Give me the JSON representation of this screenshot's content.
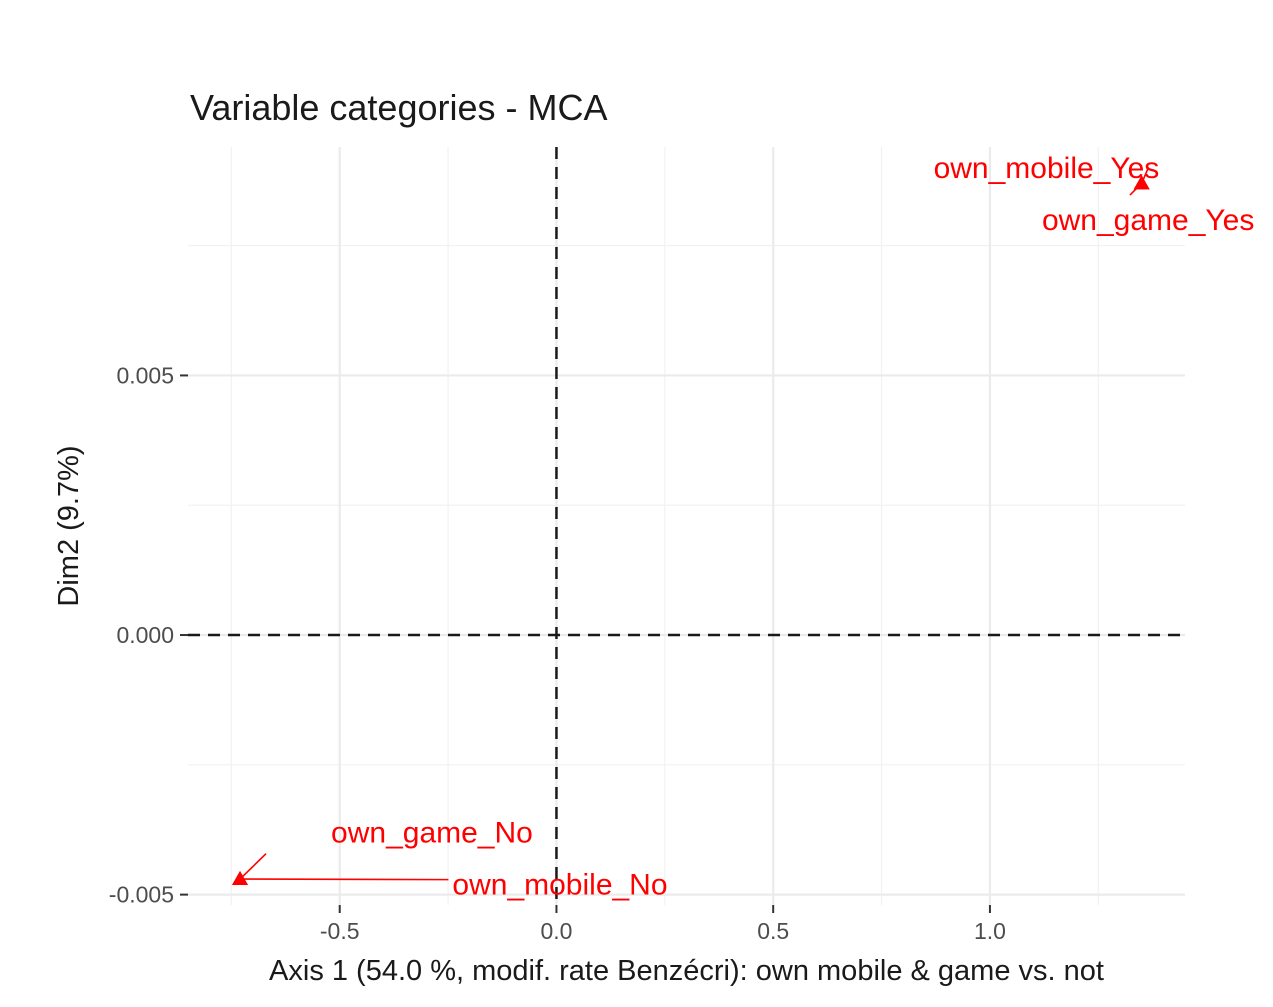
{
  "chart_data": {
    "type": "scatter",
    "title": "Variable categories - MCA",
    "xlabel": "Axis 1 (54.0 %, modif. rate Benzécri): own mobile & game vs. not",
    "ylabel": "Dim2 (9.7%)",
    "xlim": [
      -0.85,
      1.45
    ],
    "ylim": [
      -0.0052,
      0.0094
    ],
    "x_ticks": [
      -0.5,
      0.0,
      0.5,
      1.0
    ],
    "x_tick_labels": [
      "-0.5",
      "0.0",
      "0.5",
      "1.0"
    ],
    "y_ticks": [
      -0.005,
      0.0,
      0.005
    ],
    "y_tick_labels": [
      "-0.005",
      "0.000",
      "0.005"
    ],
    "grid": true,
    "reference_lines": {
      "x": 0,
      "y": 0,
      "style": "dashed"
    },
    "marker": "triangle",
    "color": "#ff0000",
    "points": [
      {
        "label": "own_mobile_Yes",
        "x": 1.35,
        "y": 0.0087
      },
      {
        "label": "own_game_Yes",
        "x": 1.35,
        "y": 0.0087
      },
      {
        "label": "own_game_No",
        "x": -0.73,
        "y": -0.0047
      },
      {
        "label": "own_mobile_No",
        "x": -0.73,
        "y": -0.0047
      }
    ],
    "label_positions": [
      {
        "label": "own_mobile_Yes",
        "x": 0.87,
        "y": 0.0088
      },
      {
        "label": "own_game_Yes",
        "x": 1.12,
        "y": 0.0078
      },
      {
        "label": "own_game_No",
        "x": -0.52,
        "y": -0.004
      },
      {
        "label": "own_mobile_No",
        "x": -0.24,
        "y": -0.005
      }
    ]
  }
}
